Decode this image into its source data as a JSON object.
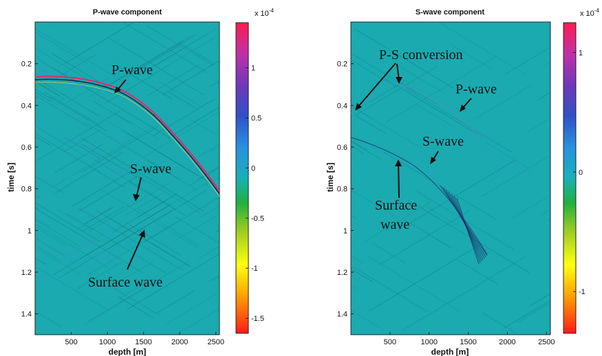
{
  "chart_data": [
    {
      "type": "heatmap",
      "title": "P-wave component",
      "xlabel": "depth [m]",
      "ylabel": "time [s]",
      "xlim": [
        0,
        2550
      ],
      "ylim": [
        0,
        1.5
      ],
      "y_reversed": true,
      "x_ticks": [
        "500",
        "1000",
        "1500",
        "2000",
        "2500"
      ],
      "y_ticks": [
        "0.2",
        "0.4",
        "0.6",
        "0.8",
        "1",
        "1.2",
        "1.4"
      ],
      "background_color": "#1aaab0",
      "colorbar": {
        "exponent_label": "x 10",
        "exponent_power": "-4",
        "range": [
          -1.65,
          1.45
        ],
        "ticks": [
          "1",
          "0.5",
          "0",
          "-0.5",
          "-1",
          "-1.5"
        ]
      },
      "annotations": [
        {
          "text": "P-wave"
        },
        {
          "text": "S-wave"
        },
        {
          "text": "Surface wave"
        }
      ]
    },
    {
      "type": "heatmap",
      "title": "S-wave component",
      "xlabel": "depth [m]",
      "ylabel": "time [s]",
      "xlim": [
        0,
        2550
      ],
      "ylim": [
        0,
        1.5
      ],
      "y_reversed": true,
      "x_ticks": [
        "500",
        "1000",
        "1500",
        "2000",
        "2500"
      ],
      "y_ticks": [
        "0.2",
        "0.4",
        "0.6",
        "0.8",
        "1",
        "1.2",
        "1.4"
      ],
      "background_color": "#1aaab0",
      "colorbar": {
        "exponent_label": "x 10",
        "exponent_power": "-4",
        "range": [
          -1.35,
          1.25
        ],
        "ticks": [
          "1",
          "0",
          "-1"
        ]
      },
      "annotations": [
        {
          "text": "P-S conversion"
        },
        {
          "text": "P-wave"
        },
        {
          "text": "S-wave"
        },
        {
          "text": "Surface"
        },
        {
          "text": "wave"
        }
      ]
    }
  ]
}
